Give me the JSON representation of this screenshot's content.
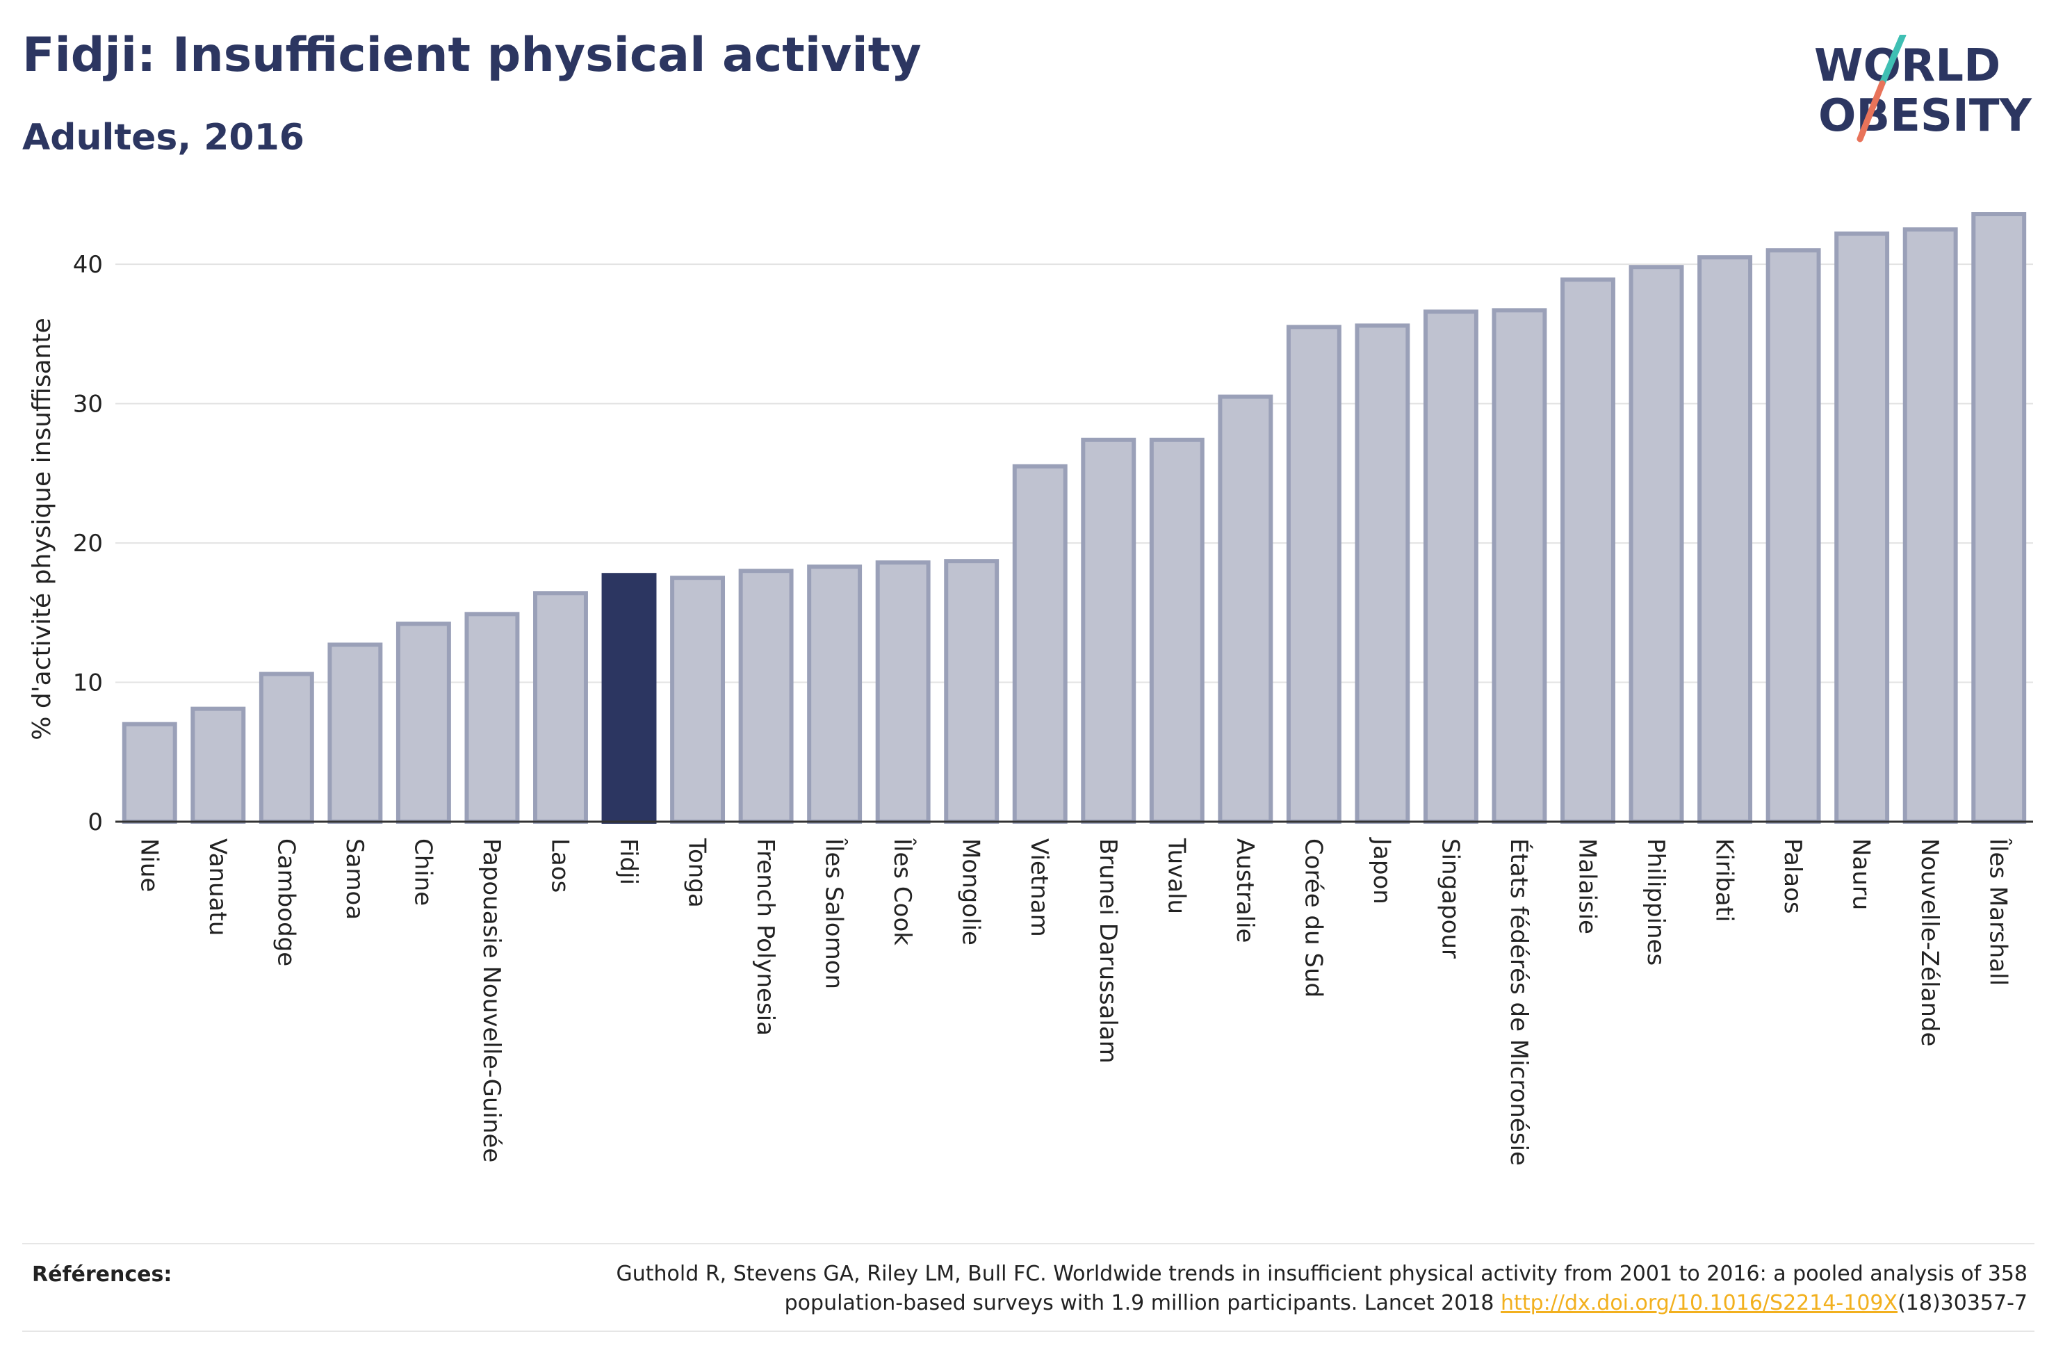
{
  "header": {
    "title": "Fidji: Insufficient physical activity",
    "subtitle": "Adultes, 2016"
  },
  "logo": {
    "line1": "WORLD",
    "line2": "OBESITY"
  },
  "colors": {
    "highlight": "#2c3661",
    "bar_fill": "#bfc2d0",
    "bar_stroke": "#9aa0b8",
    "grid": "#e3e3e3",
    "logo_text": "#2c3661",
    "logo_slash_teal": "#3fbfb3",
    "logo_slash_coral": "#e8735a",
    "link": "#f2b01e"
  },
  "chart_data": {
    "type": "bar",
    "ylabel": "% d'activité physique insuffisante",
    "xlabel": "",
    "ylim": [
      0,
      44
    ],
    "yticks": [
      0,
      10,
      20,
      30,
      40
    ],
    "grid": true,
    "highlight": "Fidji",
    "categories": [
      "Niue",
      "Vanuatu",
      "Cambodge",
      "Samoa",
      "Chine",
      "Papouasie Nouvelle-Guinée",
      "Laos",
      "Fidji",
      "Tonga",
      "French Polynesia",
      "Îles Salomon",
      "Îles Cook",
      "Mongolie",
      "Vietnam",
      "Brunei Darussalam",
      "Tuvalu",
      "Australie",
      "Corée du Sud",
      "Japon",
      "Singapour",
      "États fédérés de Micronésie",
      "Malaisie",
      "Philippines",
      "Kiribati",
      "Palaos",
      "Nauru",
      "Nouvelle-Zélande",
      "Îles Marshall"
    ],
    "values": [
      7.0,
      8.1,
      10.6,
      12.7,
      14.2,
      14.9,
      16.4,
      17.7,
      17.5,
      18.0,
      18.3,
      18.6,
      18.7,
      25.5,
      27.4,
      27.4,
      30.5,
      35.5,
      35.6,
      36.6,
      36.7,
      38.9,
      39.8,
      40.5,
      41.0,
      42.2,
      42.5,
      43.6
    ]
  },
  "references": {
    "label": "Références:",
    "line1": "Guthold R, Stevens GA, Riley LM, Bull FC. Worldwide trends in insufficient physical activity from 2001 to 2016: a pooled analysis of 358",
    "line2_before": "population-based surveys with 1.9 million participants. Lancet 2018 ",
    "link_text": "http://dx.doi.org/10.1016/S2214-109X",
    "line2_after": "(18)30357-7"
  }
}
